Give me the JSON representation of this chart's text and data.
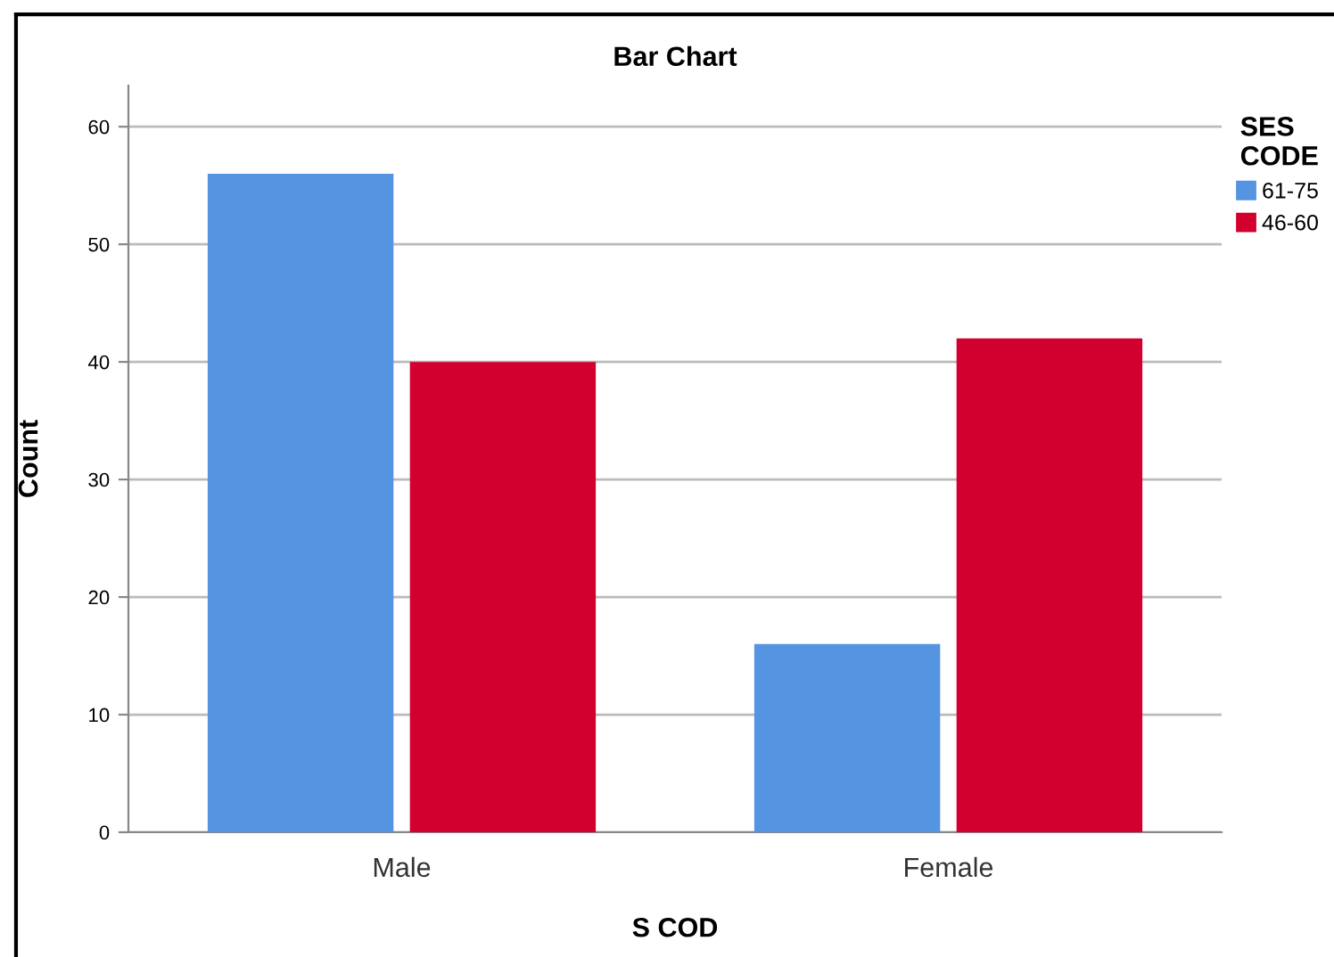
{
  "chart_data": {
    "type": "bar",
    "title": "Bar Chart",
    "xlabel": "S COD",
    "ylabel": "Count",
    "legend_title": "SES\nCODE",
    "categories": [
      "Male",
      "Female"
    ],
    "series": [
      {
        "name": "61-75",
        "color": "#5594e1",
        "values": [
          56,
          16
        ]
      },
      {
        "name": "46-60",
        "color": "#d2002f",
        "values": [
          40,
          42
        ]
      }
    ],
    "ylim": [
      0,
      63.5
    ],
    "yticks": [
      0,
      10,
      20,
      30,
      40,
      50,
      60
    ],
    "grid": "y",
    "legend": "top right"
  }
}
